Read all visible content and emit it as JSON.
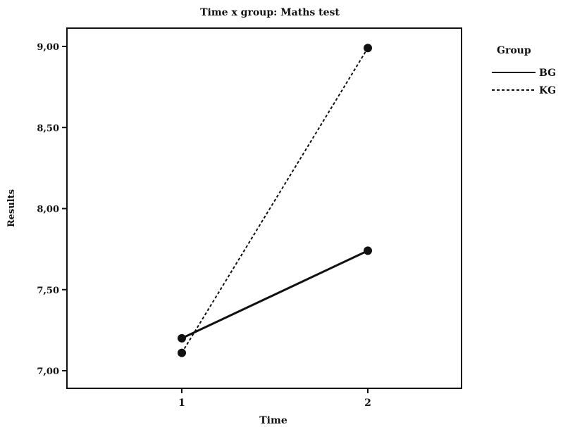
{
  "chart_data": {
    "type": "line",
    "title": "Time x group: Maths test",
    "xlabel": "Time",
    "ylabel": "Results",
    "categories": [
      "1",
      "2"
    ],
    "ylim": [
      6.95,
      9.2
    ],
    "yticks": [
      "7,00",
      "7,50",
      "8,00",
      "8,50",
      "9,00"
    ],
    "ytick_values": [
      7.0,
      7.5,
      8.0,
      8.5,
      9.0
    ],
    "legend_title": "Group",
    "legend_position": "right",
    "series": [
      {
        "name": "BG",
        "values": [
          7.2,
          7.74
        ],
        "style": "solid"
      },
      {
        "name": "KG",
        "values": [
          7.11,
          8.99
        ],
        "style": "dashed"
      }
    ],
    "colors": {
      "line": "#111111",
      "background": "#ffffff"
    }
  }
}
